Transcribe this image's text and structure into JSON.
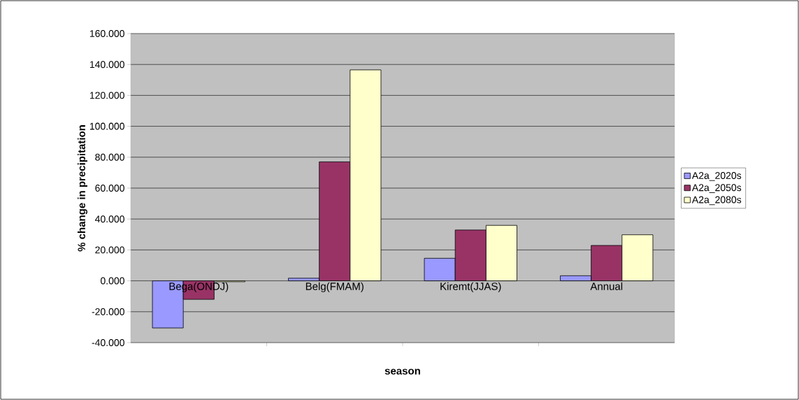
{
  "chart_data": {
    "type": "bar",
    "xlabel": "season",
    "ylabel": "% change in precipitation",
    "categories": [
      "Bega(ONDJ)",
      "Belg(FMAM)",
      "Kiremt(JJAS)",
      "Annual"
    ],
    "series": [
      {
        "name": "A2a_2020s",
        "color": "#9999ff",
        "values": [
          -30.5,
          1.7,
          14.6,
          3.3
        ]
      },
      {
        "name": "A2a_2050s",
        "color": "#993366",
        "values": [
          -12.0,
          77.0,
          32.9,
          22.9
        ]
      },
      {
        "name": "A2a_2080s",
        "color": "#ffffcc",
        "values": [
          -0.6,
          136.5,
          35.9,
          29.8
        ]
      }
    ],
    "ylim": [
      -40,
      160
    ],
    "yticks": [
      {
        "value": -40,
        "label": "-40.000"
      },
      {
        "value": -20,
        "label": "-20.000"
      },
      {
        "value": 0,
        "label": "0.000"
      },
      {
        "value": 20,
        "label": "20.000"
      },
      {
        "value": 40,
        "label": "40.000"
      },
      {
        "value": 60,
        "label": "60.000"
      },
      {
        "value": 80,
        "label": "80.000"
      },
      {
        "value": 100,
        "label": "100.000"
      },
      {
        "value": 120,
        "label": "120.000"
      },
      {
        "value": 140,
        "label": "140.000"
      },
      {
        "value": 160,
        "label": "160.000"
      }
    ],
    "grid": "y",
    "legend": "right"
  }
}
